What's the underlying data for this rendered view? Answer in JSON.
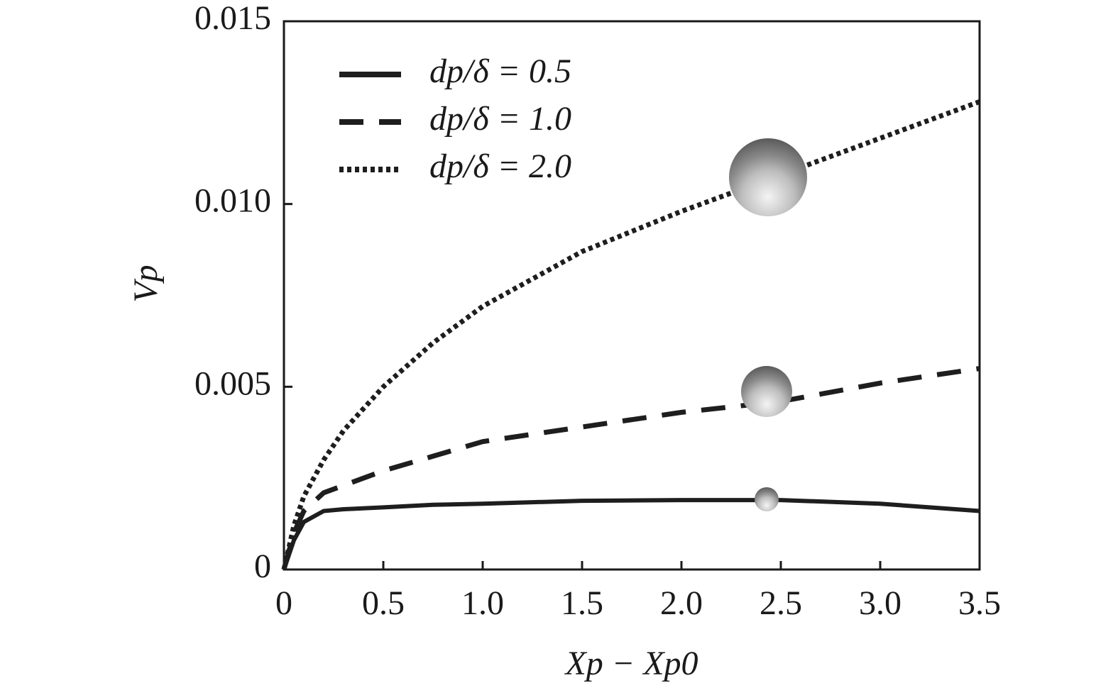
{
  "chart_data": {
    "type": "line",
    "x_label": "Xp − Xp0",
    "y_label": "Vp",
    "x": [
      0,
      0.05,
      0.1,
      0.2,
      0.3,
      0.5,
      0.75,
      1.0,
      1.5,
      2.0,
      2.5,
      3.0,
      3.5
    ],
    "series": [
      {
        "name": "dp/δ = 0.5",
        "color": "#1e1e1e",
        "dash": "solid",
        "values": [
          0,
          0.0008,
          0.0013,
          0.0016,
          0.00165,
          0.0017,
          0.00177,
          0.0018,
          0.00188,
          0.0019,
          0.0019,
          0.0018,
          0.0016
        ]
      },
      {
        "name": "dp/δ = 1.0",
        "color": "#1e1e1e",
        "dash": "dashed",
        "values": [
          0,
          0.001,
          0.0016,
          0.0021,
          0.0023,
          0.0027,
          0.0031,
          0.0035,
          0.0039,
          0.0043,
          0.0046,
          0.0051,
          0.0055
        ]
      },
      {
        "name": "dp/δ = 2.0",
        "color": "#1e1e1e",
        "dash": "dotted",
        "values": [
          0,
          0.0012,
          0.002,
          0.003,
          0.0038,
          0.005,
          0.0062,
          0.0072,
          0.0087,
          0.0098,
          0.0108,
          0.0118,
          0.0128
        ]
      }
    ],
    "xlim": [
      0,
      3.5
    ],
    "xticks": [
      0,
      0.5,
      {
        "value": 1,
        "label": "1.0"
      },
      1.5,
      {
        "value": 2,
        "label": "2.0"
      },
      2.5,
      {
        "value": 3,
        "label": "3.0"
      },
      3.5
    ],
    "ylim": [
      0,
      0.015
    ],
    "yticks": [
      0,
      0.005,
      {
        "value": 0.01,
        "label": "0.010"
      },
      0.015
    ],
    "legend": "upper left"
  }
}
